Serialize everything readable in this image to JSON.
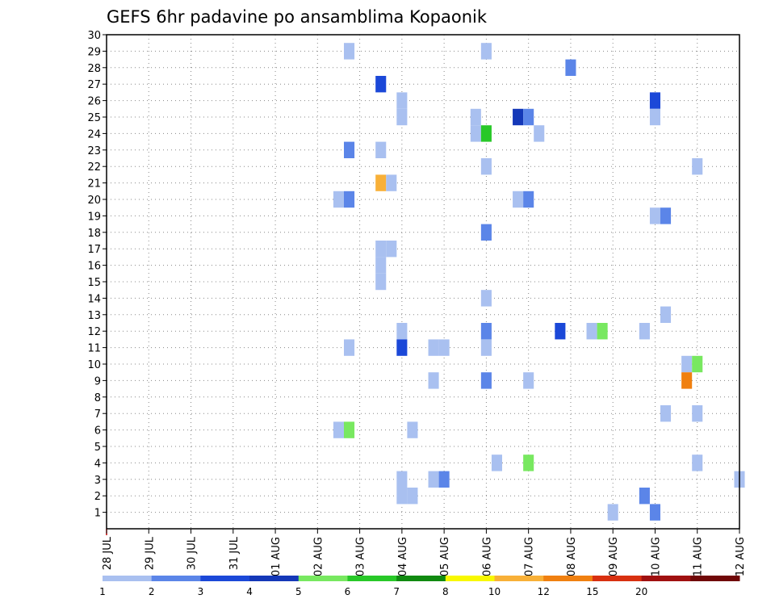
{
  "chart_data": {
    "type": "heatmap",
    "title": "GEFS 6hr padavine po ansamblima Kopaonik",
    "xlabel": "",
    "ylabel": "",
    "grid": true,
    "y_ticks": [
      1,
      2,
      3,
      4,
      5,
      6,
      7,
      8,
      9,
      10,
      11,
      12,
      13,
      14,
      15,
      16,
      17,
      18,
      19,
      20,
      21,
      22,
      23,
      24,
      25,
      26,
      27,
      28,
      29,
      30
    ],
    "y_range": [
      0,
      30
    ],
    "x_ticks": [
      "28 JUL",
      "29 JUL",
      "30 JUL",
      "31 JUL",
      "01 AUG",
      "02 AUG",
      "03 AUG",
      "04 AUG",
      "05 AUG",
      "06 AUG",
      "07 AUG",
      "08 AUG",
      "09 AUG",
      "10 AUG",
      "11 AUG",
      "12 AUG"
    ],
    "x_range_days": [
      0,
      15
    ],
    "color_levels": [
      1,
      2,
      3,
      4,
      5,
      6,
      7,
      8,
      10,
      12,
      15,
      20
    ],
    "color_scale": [
      "#a9c0f0",
      "#5b85e8",
      "#1b48d8",
      "#1438b8",
      "#78e860",
      "#28c828",
      "#108a10",
      "#f8f800",
      "#f8b038",
      "#f08010",
      "#d83010",
      "#a01010",
      "#700808"
    ],
    "cells": [
      [
        5.75,
        29,
        0
      ],
      [
        9,
        29,
        0
      ],
      [
        11.0,
        28,
        1
      ],
      [
        6.5,
        27,
        2
      ],
      [
        13,
        26,
        2
      ],
      [
        7.0,
        26,
        0
      ],
      [
        7.0,
        25,
        0
      ],
      [
        8.75,
        25,
        0
      ],
      [
        9.75,
        25,
        3
      ],
      [
        10.0,
        25,
        1
      ],
      [
        13,
        25,
        0
      ],
      [
        8.75,
        24,
        0
      ],
      [
        9,
        24,
        5
      ],
      [
        10.25,
        24,
        0
      ],
      [
        5.75,
        23,
        1
      ],
      [
        6.5,
        23,
        0
      ],
      [
        9,
        22,
        0
      ],
      [
        14,
        22,
        0
      ],
      [
        6.5,
        21,
        8
      ],
      [
        6.75,
        21,
        0
      ],
      [
        5.5,
        20,
        0
      ],
      [
        5.75,
        20,
        1
      ],
      [
        9.75,
        20,
        0
      ],
      [
        10.0,
        20,
        1
      ],
      [
        13,
        19,
        0
      ],
      [
        13.25,
        19,
        1
      ],
      [
        9,
        18,
        1
      ],
      [
        6.5,
        17,
        0
      ],
      [
        6.75,
        17,
        0
      ],
      [
        6.5,
        16,
        0
      ],
      [
        6.5,
        15,
        0
      ],
      [
        9,
        14,
        0
      ],
      [
        13.25,
        13,
        0
      ],
      [
        7.0,
        12,
        0
      ],
      [
        9,
        12,
        1
      ],
      [
        10.75,
        12,
        2
      ],
      [
        11.5,
        12,
        0
      ],
      [
        11.75,
        12,
        4
      ],
      [
        12.75,
        12,
        0
      ],
      [
        5.75,
        11,
        0
      ],
      [
        7.0,
        11,
        2
      ],
      [
        7.75,
        11,
        0
      ],
      [
        8.0,
        11,
        0
      ],
      [
        9,
        11,
        0
      ],
      [
        13.75,
        10,
        0
      ],
      [
        14,
        10,
        4
      ],
      [
        7.75,
        9,
        0
      ],
      [
        9,
        9,
        1
      ],
      [
        10,
        9,
        0
      ],
      [
        13.75,
        9,
        9
      ],
      [
        13.25,
        7,
        0
      ],
      [
        14,
        7,
        0
      ],
      [
        5.5,
        6,
        0
      ],
      [
        5.75,
        6,
        4
      ],
      [
        7.25,
        6,
        0
      ],
      [
        9.25,
        4,
        0
      ],
      [
        10,
        4,
        4
      ],
      [
        14,
        4,
        0
      ],
      [
        7.0,
        3,
        0
      ],
      [
        7.75,
        3,
        0
      ],
      [
        8.0,
        3,
        1
      ],
      [
        15,
        3,
        0
      ],
      [
        7.0,
        2,
        0
      ],
      [
        7.25,
        2,
        0
      ],
      [
        12.75,
        2,
        1
      ],
      [
        12.0,
        1,
        0
      ],
      [
        13,
        1,
        1
      ]
    ]
  }
}
